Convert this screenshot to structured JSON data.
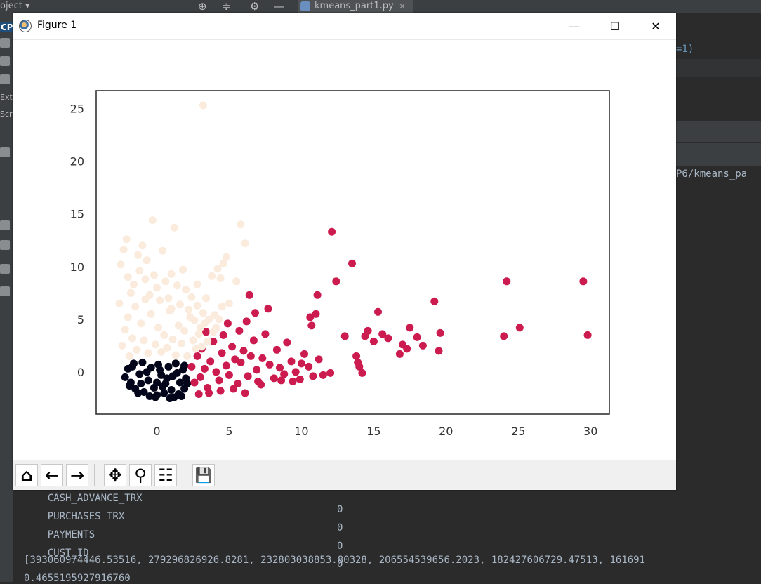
{
  "ide": {
    "project_label": "oject",
    "project_caret": "▾",
    "tab_name": "kmeans_part1.py",
    "tab_close": "✕",
    "left_label_cp": "CP",
    "left_label_exte": "Exte",
    "left_label_scra": "Scra",
    "code_fragment": "=1)",
    "path_fragment": "P6/kmeans_pa",
    "icons": [
      "crosshair-icon",
      "collapse-icon",
      "gear-icon",
      "minimize-icon"
    ]
  },
  "console": {
    "rows": [
      {
        "name": "CASH_ADVANCE_TRX",
        "value": "0"
      },
      {
        "name": "PURCHASES_TRX",
        "value": "0"
      },
      {
        "name": "PAYMENTS",
        "value": "0"
      },
      {
        "name": "CUST_ID",
        "value": "0"
      }
    ],
    "list_line": "[393060974446.53516, 279296826926.8281, 232803038853.80328, 206554539656.2023, 182427606729.47513, 161691",
    "last_line": "0.4655195927916760"
  },
  "window": {
    "title": "Figure 1",
    "minimize": "—",
    "maximize": "☐",
    "close": "✕"
  },
  "toolbar": {
    "home": "⌂",
    "back": "←",
    "forward": "→",
    "pan": "✥",
    "zoom": "⚲",
    "configure": "☷",
    "save": "💾"
  },
  "chart_data": {
    "type": "scatter",
    "xlim": [
      -4.2,
      31.3
    ],
    "ylim": [
      -4.0,
      26.7
    ],
    "xticks": [
      "0",
      "5",
      "10",
      "20",
      "15",
      "25",
      "30"
    ],
    "xtick_values": [
      0,
      5,
      10,
      20,
      15,
      25,
      30
    ],
    "yticks": [
      "0",
      "5",
      "10",
      "15",
      "20",
      "25"
    ],
    "ytick_values": [
      0,
      5,
      10,
      15,
      20,
      25
    ],
    "grid": false,
    "colors": {
      "cluster_dark": "#03051a",
      "cluster_red": "#cb1b4f",
      "cluster_light": "#faebdd"
    },
    "series": [
      {
        "color": "#03051a",
        "points": [
          [
            -2.2,
            -0.5
          ],
          [
            -2.0,
            0.3
          ],
          [
            -1.8,
            -1.0
          ],
          [
            -1.6,
            0.8
          ],
          [
            -1.5,
            -1.6
          ],
          [
            -1.2,
            -0.2
          ],
          [
            -1.0,
            0.9
          ],
          [
            -0.9,
            -1.9
          ],
          [
            -0.6,
            -0.8
          ],
          [
            -0.4,
            0.4
          ],
          [
            -0.2,
            -1.5
          ],
          [
            0.0,
            -2.2
          ],
          [
            0.1,
            0.7
          ],
          [
            0.3,
            -0.3
          ],
          [
            0.5,
            -2.0
          ],
          [
            0.6,
            -1.1
          ],
          [
            0.8,
            0.5
          ],
          [
            1.0,
            -1.7
          ],
          [
            1.1,
            -0.4
          ],
          [
            1.3,
            0.8
          ],
          [
            1.5,
            -2.1
          ],
          [
            1.6,
            -1.0
          ],
          [
            1.8,
            0.2
          ],
          [
            1.9,
            -1.6
          ],
          [
            2.0,
            -0.6
          ],
          [
            -1.9,
            -1.3
          ],
          [
            -1.3,
            -2.0
          ],
          [
            -0.7,
            0.0
          ],
          [
            0.4,
            -1.4
          ],
          [
            1.4,
            -0.1
          ],
          [
            1.7,
            -2.3
          ],
          [
            -0.1,
            -2.4
          ],
          [
            0.9,
            -2.5
          ],
          [
            -1.7,
            0.5
          ],
          [
            2.1,
            -1.1
          ],
          [
            0.2,
            0.2
          ],
          [
            -1.1,
            -1.1
          ],
          [
            1.2,
            -2.4
          ],
          [
            0.7,
            -0.6
          ],
          [
            -0.5,
            -2.3
          ],
          [
            0.0,
            -1.0
          ],
          [
            1.9,
            0.6
          ]
        ]
      },
      {
        "color": "#cb1b4f",
        "points": [
          [
            2.4,
            0.5
          ],
          [
            2.6,
            -1.0
          ],
          [
            2.8,
            1.5
          ],
          [
            3.0,
            -0.5
          ],
          [
            3.1,
            2.2
          ],
          [
            3.3,
            0.3
          ],
          [
            3.5,
            -1.5
          ],
          [
            3.7,
            1.0
          ],
          [
            3.9,
            2.9
          ],
          [
            4.1,
            0.0
          ],
          [
            4.3,
            -0.8
          ],
          [
            4.5,
            1.8
          ],
          [
            4.6,
            3.5
          ],
          [
            4.8,
            0.6
          ],
          [
            5.0,
            -0.3
          ],
          [
            5.2,
            2.4
          ],
          [
            5.4,
            1.2
          ],
          [
            5.6,
            -1.1
          ],
          [
            5.8,
            0.9
          ],
          [
            6.0,
            2.0
          ],
          [
            6.2,
            4.8
          ],
          [
            6.3,
            -0.4
          ],
          [
            6.5,
            1.5
          ],
          [
            6.7,
            3.0
          ],
          [
            6.9,
            0.2
          ],
          [
            7.0,
            -0.9
          ],
          [
            7.3,
            1.3
          ],
          [
            7.5,
            3.6
          ],
          [
            7.7,
            6.0
          ],
          [
            7.8,
            0.7
          ],
          [
            8.1,
            -0.6
          ],
          [
            8.3,
            2.1
          ],
          [
            8.5,
            0.4
          ],
          [
            8.8,
            -0.2
          ],
          [
            9.0,
            2.8
          ],
          [
            9.3,
            1.0
          ],
          [
            9.6,
            0.0
          ],
          [
            9.9,
            -0.7
          ],
          [
            10.2,
            1.7
          ],
          [
            10.5,
            0.5
          ],
          [
            10.8,
            -0.4
          ],
          [
            11.2,
            1.2
          ],
          [
            11.5,
            -0.3
          ],
          [
            12.0,
            -0.1
          ],
          [
            3.4,
            3.8
          ],
          [
            4.9,
            4.6
          ],
          [
            5.7,
            3.9
          ],
          [
            6.8,
            5.6
          ],
          [
            8.6,
            -0.8
          ],
          [
            3.6,
            -2.0
          ],
          [
            2.9,
            -2.1
          ],
          [
            5.3,
            -1.6
          ],
          [
            6.1,
            -2.0
          ],
          [
            4.4,
            -1.8
          ],
          [
            7.2,
            -1.2
          ],
          [
            9.4,
            -0.9
          ],
          [
            10.0,
            0.8
          ],
          [
            11.0,
            5.5
          ],
          [
            10.7,
            4.4
          ],
          [
            10.6,
            5.2
          ],
          [
            11.1,
            7.3
          ],
          [
            12.4,
            8.6
          ],
          [
            12.1,
            13.3
          ],
          [
            13.5,
            10.3
          ],
          [
            13.0,
            3.4
          ],
          [
            13.8,
            1.5
          ],
          [
            14.0,
            0.5
          ],
          [
            14.2,
            -0.1
          ],
          [
            14.4,
            3.4
          ],
          [
            14.6,
            3.9
          ],
          [
            15.0,
            2.9
          ],
          [
            15.3,
            5.7
          ],
          [
            15.6,
            3.6
          ],
          [
            16.0,
            3.2
          ],
          [
            16.8,
            1.7
          ],
          [
            17.0,
            2.6
          ],
          [
            17.3,
            2.2
          ],
          [
            17.5,
            4.2
          ],
          [
            18.0,
            3.3
          ],
          [
            18.4,
            2.5
          ],
          [
            19.2,
            6.7
          ],
          [
            19.6,
            3.7
          ],
          [
            19.5,
            2.0
          ],
          [
            24.0,
            3.4
          ],
          [
            24.2,
            8.6
          ],
          [
            25.1,
            4.2
          ],
          [
            29.5,
            8.6
          ],
          [
            29.8,
            3.5
          ],
          [
            6.4,
            7.3
          ],
          [
            13.9,
            0.9
          ]
        ]
      },
      {
        "color": "#faebdd",
        "points": [
          [
            -2.5,
            10.2
          ],
          [
            -2.3,
            11.6
          ],
          [
            -2.1,
            12.6
          ],
          [
            -2.0,
            9.0
          ],
          [
            -1.8,
            7.5
          ],
          [
            -1.6,
            8.3
          ],
          [
            -1.5,
            6.2
          ],
          [
            -1.3,
            11.1
          ],
          [
            -1.2,
            9.6
          ],
          [
            -1.0,
            12.0
          ],
          [
            -0.8,
            8.8
          ],
          [
            -0.7,
            10.6
          ],
          [
            -0.5,
            7.3
          ],
          [
            -0.3,
            14.4
          ],
          [
            -0.2,
            9.2
          ],
          [
            0.0,
            8.0
          ],
          [
            0.2,
            6.8
          ],
          [
            0.4,
            11.5
          ],
          [
            0.6,
            8.6
          ],
          [
            0.8,
            7.0
          ],
          [
            1.0,
            9.3
          ],
          [
            1.2,
            13.7
          ],
          [
            1.4,
            8.2
          ],
          [
            1.6,
            6.4
          ],
          [
            1.8,
            9.7
          ],
          [
            2.0,
            7.8
          ],
          [
            2.2,
            5.9
          ],
          [
            2.4,
            7.1
          ],
          [
            2.6,
            4.9
          ],
          [
            2.8,
            6.3
          ],
          [
            3.0,
            4.2
          ],
          [
            3.2,
            5.6
          ],
          [
            3.4,
            7.0
          ],
          [
            3.6,
            5.0
          ],
          [
            3.8,
            9.1
          ],
          [
            4.0,
            5.4
          ],
          [
            4.2,
            9.8
          ],
          [
            4.4,
            8.9
          ],
          [
            4.6,
            10.3
          ],
          [
            4.8,
            10.9
          ],
          [
            5.0,
            6.5
          ],
          [
            5.5,
            8.6
          ],
          [
            5.8,
            14.0
          ],
          [
            6.1,
            12.2
          ],
          [
            3.2,
            25.3
          ],
          [
            -2.4,
            2.5
          ],
          [
            -2.2,
            4.0
          ],
          [
            -2.0,
            5.2
          ],
          [
            -1.9,
            1.5
          ],
          [
            -1.7,
            3.2
          ],
          [
            -1.4,
            2.1
          ],
          [
            -1.1,
            4.6
          ],
          [
            -0.9,
            3.0
          ],
          [
            -0.6,
            1.8
          ],
          [
            -0.4,
            5.5
          ],
          [
            -0.1,
            2.6
          ],
          [
            0.1,
            4.2
          ],
          [
            0.3,
            1.9
          ],
          [
            0.5,
            3.5
          ],
          [
            0.7,
            2.3
          ],
          [
            0.9,
            5.8
          ],
          [
            1.1,
            3.1
          ],
          [
            1.3,
            1.6
          ],
          [
            1.5,
            4.4
          ],
          [
            1.7,
            2.7
          ],
          [
            1.9,
            3.9
          ],
          [
            2.1,
            1.5
          ],
          [
            2.3,
            5.2
          ],
          [
            2.5,
            3.0
          ],
          [
            2.7,
            2.2
          ],
          [
            2.9,
            3.6
          ],
          [
            3.1,
            2.4
          ],
          [
            3.3,
            4.6
          ],
          [
            3.5,
            2.9
          ],
          [
            3.9,
            3.8
          ],
          [
            4.1,
            4.2
          ],
          [
            4.3,
            5.0
          ],
          [
            4.5,
            6.2
          ],
          [
            -2.6,
            6.5
          ],
          [
            -0.8,
            6.9
          ],
          [
            1.0,
            6.0
          ],
          [
            2.8,
            8.3
          ]
        ]
      }
    ]
  }
}
